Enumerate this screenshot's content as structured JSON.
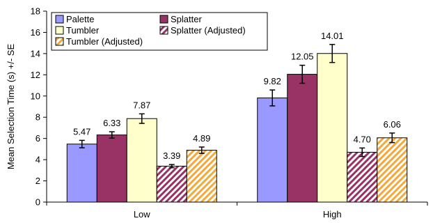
{
  "chart_data": {
    "type": "bar",
    "categories": [
      "Low",
      "High"
    ],
    "ylabel": "Mean Selection Time (s) +/- SE",
    "xlabel": "",
    "ylim": [
      0,
      18
    ],
    "ytick_step": 2,
    "grid": false,
    "legend_position": "top-left",
    "series": [
      {
        "name": "Palette",
        "values": [
          5.47,
          9.82
        ],
        "labels": [
          "5.47",
          "9.82"
        ],
        "errors": [
          0.35,
          0.75
        ],
        "color": "#9999ff",
        "pattern": "solid"
      },
      {
        "name": "Splatter",
        "values": [
          6.33,
          12.05
        ],
        "labels": [
          "6.33",
          "12.05"
        ],
        "errors": [
          0.3,
          0.85
        ],
        "color": "#993366",
        "pattern": "solid"
      },
      {
        "name": "Tumbler",
        "values": [
          7.87,
          14.01
        ],
        "labels": [
          "7.87",
          "14.01"
        ],
        "errors": [
          0.45,
          0.85
        ],
        "color": "#ffffcc",
        "pattern": "solid"
      },
      {
        "name": "Splatter (Adjusted)",
        "values": [
          3.39,
          4.7
        ],
        "labels": [
          "3.39",
          "4.70"
        ],
        "errors": [
          0.15,
          0.4
        ],
        "color": "#993366",
        "pattern": "diagonal-stripes"
      },
      {
        "name": "Tumbler (Adjusted)",
        "values": [
          4.89,
          6.06
        ],
        "labels": [
          "4.89",
          "6.06"
        ],
        "errors": [
          0.3,
          0.45
        ],
        "color": "#f4a93c",
        "pattern": "diagonal-stripes"
      }
    ]
  }
}
